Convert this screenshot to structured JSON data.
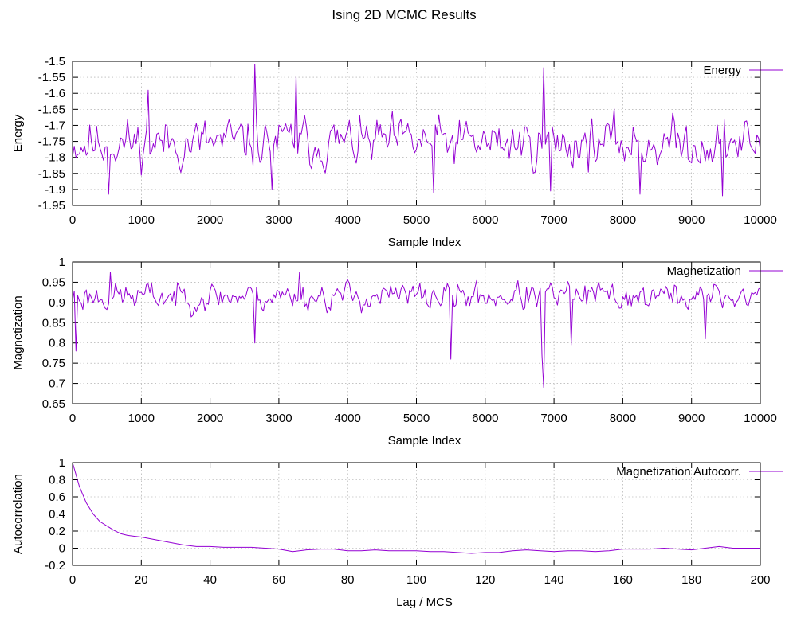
{
  "title": "Ising 2D MCMC Results",
  "line_color": "#9400d3",
  "chart_data": [
    {
      "type": "line",
      "name": "energy",
      "ylabel": "Energy",
      "xlabel": "Sample Index",
      "xlim": [
        0,
        10000
      ],
      "ylim": [
        -1.95,
        -1.5
      ],
      "x_ticks": [
        0,
        1000,
        2000,
        3000,
        4000,
        5000,
        6000,
        7000,
        8000,
        9000,
        10000
      ],
      "y_ticks": [
        -1.95,
        -1.9,
        -1.85,
        -1.8,
        -1.75,
        -1.7,
        -1.65,
        -1.6,
        -1.55,
        -1.5
      ],
      "grid": true,
      "legend_position": "top-right",
      "series": [
        {
          "name": "Energy",
          "x_start": 0,
          "x_step": 25,
          "mean": -1.755,
          "noise_amplitude": 0.055,
          "seed": 11,
          "annotated_points": [
            {
              "x": 530,
              "y": -1.915
            },
            {
              "x": 1100,
              "y": -1.59
            },
            {
              "x": 2650,
              "y": -1.51
            },
            {
              "x": 2900,
              "y": -1.9
            },
            {
              "x": 3250,
              "y": -1.545
            },
            {
              "x": 5250,
              "y": -1.91
            },
            {
              "x": 6850,
              "y": -1.52
            },
            {
              "x": 6950,
              "y": -1.905
            },
            {
              "x": 8250,
              "y": -1.915
            },
            {
              "x": 9450,
              "y": -1.92
            }
          ]
        }
      ]
    },
    {
      "type": "line",
      "name": "magnetization",
      "ylabel": "Magnetization",
      "xlabel": "Sample Index",
      "xlim": [
        0,
        10000
      ],
      "ylim": [
        0.65,
        1
      ],
      "x_ticks": [
        0,
        1000,
        2000,
        3000,
        4000,
        5000,
        6000,
        7000,
        8000,
        9000,
        10000
      ],
      "y_ticks": [
        0.65,
        0.7,
        0.75,
        0.8,
        0.85,
        0.9,
        0.95,
        1
      ],
      "grid": true,
      "legend_position": "top-right",
      "series": [
        {
          "name": "Magnetization",
          "x_start": 0,
          "x_step": 25,
          "mean": 0.915,
          "noise_amplitude": 0.025,
          "seed": 23,
          "annotated_points": [
            {
              "x": 40,
              "y": 0.78
            },
            {
              "x": 550,
              "y": 0.975
            },
            {
              "x": 2650,
              "y": 0.8
            },
            {
              "x": 3300,
              "y": 0.975
            },
            {
              "x": 5500,
              "y": 0.76
            },
            {
              "x": 6830,
              "y": 0.77
            },
            {
              "x": 6860,
              "y": 0.69
            },
            {
              "x": 7250,
              "y": 0.795
            },
            {
              "x": 9200,
              "y": 0.81
            }
          ]
        }
      ]
    },
    {
      "type": "line",
      "name": "autocorrelation",
      "ylabel": "Autocorrelation",
      "xlabel": "Lag / MCS",
      "xlim": [
        0,
        200
      ],
      "ylim": [
        -0.2,
        1
      ],
      "x_ticks": [
        0,
        20,
        40,
        60,
        80,
        100,
        120,
        140,
        160,
        180,
        200
      ],
      "y_ticks": [
        -0.2,
        0,
        0.2,
        0.4,
        0.6,
        0.8,
        1
      ],
      "grid": true,
      "legend_position": "top-right",
      "series": [
        {
          "name": "Magnetization Autocorr.",
          "x": [
            0,
            2,
            4,
            6,
            8,
            10,
            12,
            14,
            16,
            18,
            20,
            24,
            28,
            32,
            36,
            40,
            44,
            48,
            52,
            56,
            60,
            64,
            68,
            72,
            76,
            80,
            84,
            88,
            92,
            96,
            100,
            104,
            108,
            112,
            116,
            120,
            124,
            128,
            132,
            136,
            140,
            144,
            148,
            152,
            156,
            160,
            164,
            168,
            172,
            176,
            180,
            184,
            188,
            192,
            196,
            200
          ],
          "y": [
            1.0,
            0.72,
            0.53,
            0.4,
            0.31,
            0.26,
            0.21,
            0.17,
            0.15,
            0.14,
            0.13,
            0.1,
            0.07,
            0.04,
            0.02,
            0.02,
            0.01,
            0.01,
            0.01,
            0.0,
            -0.01,
            -0.04,
            -0.02,
            -0.01,
            -0.01,
            -0.03,
            -0.03,
            -0.02,
            -0.03,
            -0.03,
            -0.03,
            -0.04,
            -0.04,
            -0.05,
            -0.06,
            -0.05,
            -0.05,
            -0.03,
            -0.02,
            -0.03,
            -0.04,
            -0.03,
            -0.03,
            -0.04,
            -0.03,
            -0.01,
            -0.01,
            -0.01,
            0.0,
            -0.01,
            -0.02,
            0.0,
            0.02,
            0.0,
            0.0,
            0.0
          ]
        }
      ]
    }
  ]
}
